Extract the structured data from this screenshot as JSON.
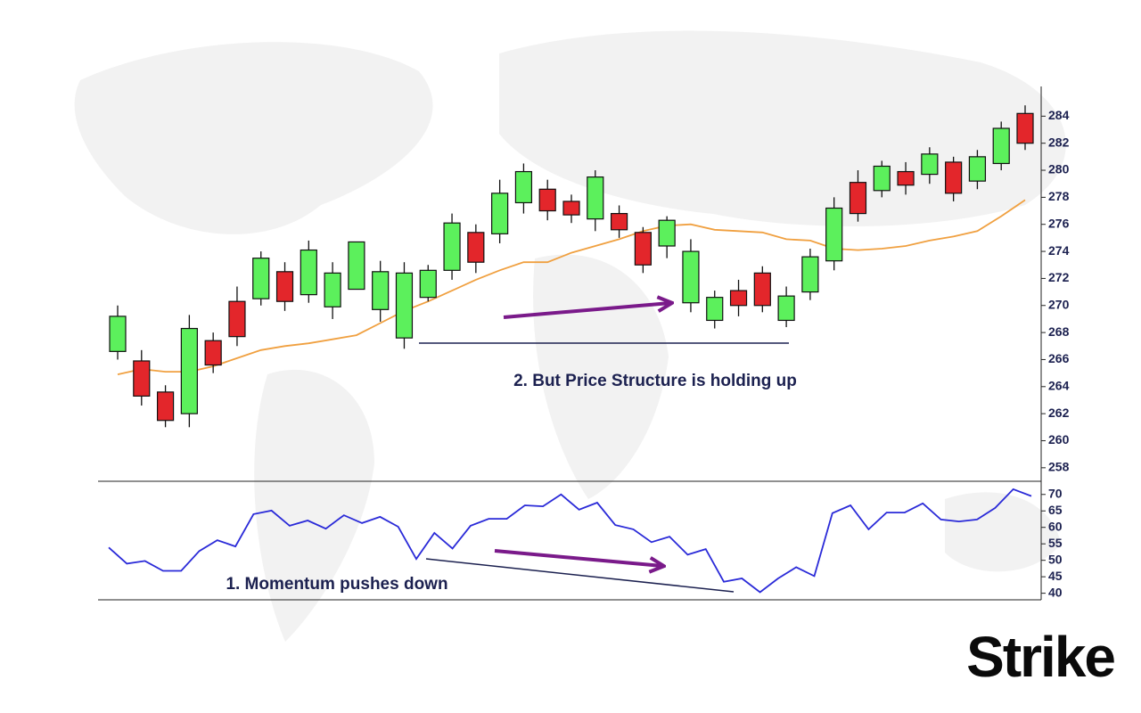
{
  "chart_data": [
    {
      "type": "candlestick",
      "open": [
        266.6,
        265.9,
        263.6,
        262.0,
        267.4,
        270.3,
        270.5,
        272.5,
        270.8,
        269.9,
        271.2,
        269.7,
        267.6,
        270.6,
        272.6,
        275.4,
        275.3,
        277.6,
        278.6,
        277.7,
        276.4,
        276.8,
        275.4,
        274.4,
        270.2,
        268.9,
        271.1,
        272.4,
        268.9,
        271.0,
        273.3,
        279.1,
        278.5,
        279.9,
        279.7,
        280.6,
        279.2,
        280.5,
        284.2
      ],
      "high": [
        270.0,
        266.7,
        264.1,
        269.3,
        268.0,
        271.4,
        274.0,
        273.2,
        274.8,
        273.2,
        274.7,
        273.3,
        273.2,
        273.0,
        276.8,
        276.0,
        279.3,
        280.5,
        279.3,
        278.2,
        280.0,
        277.4,
        275.8,
        276.6,
        274.9,
        271.1,
        271.9,
        272.9,
        271.4,
        274.2,
        278.0,
        280.0,
        280.7,
        280.6,
        281.7,
        281.0,
        281.5,
        283.6,
        284.8
      ],
      "low": [
        266.0,
        262.6,
        261.0,
        261.0,
        265.0,
        267.0,
        270.0,
        269.6,
        270.2,
        269.0,
        271.2,
        268.8,
        266.8,
        270.3,
        271.9,
        272.4,
        274.6,
        276.8,
        276.3,
        276.1,
        275.5,
        275.0,
        272.4,
        273.5,
        269.5,
        268.3,
        269.2,
        269.5,
        268.4,
        270.4,
        272.6,
        276.2,
        278.0,
        278.2,
        279.0,
        277.7,
        278.6,
        280.0,
        281.5
      ],
      "close": [
        269.2,
        263.3,
        261.5,
        268.3,
        265.6,
        267.7,
        273.5,
        270.3,
        274.1,
        272.4,
        274.7,
        272.5,
        272.4,
        272.6,
        276.1,
        273.2,
        278.3,
        279.9,
        277.0,
        276.7,
        279.5,
        275.6,
        273.0,
        276.3,
        274.0,
        270.6,
        270.0,
        270.0,
        270.7,
        273.6,
        277.2,
        276.8,
        280.3,
        278.9,
        281.2,
        278.3,
        281.0,
        283.1,
        282.0
      ],
      "up_color": "#5cf05c",
      "down_color": "#e3262b",
      "moving_average": {
        "color": "#f0a040",
        "values": [
          264.9,
          265.3,
          265.1,
          265.1,
          265.5,
          266.1,
          266.7,
          267.0,
          267.2,
          267.5,
          267.8,
          268.7,
          269.6,
          270.3,
          271.1,
          271.9,
          272.6,
          273.2,
          273.2,
          273.9,
          274.4,
          274.9,
          275.5,
          275.9,
          276.0,
          275.6,
          275.5,
          275.4,
          274.9,
          274.8,
          274.2,
          274.1,
          274.2,
          274.4,
          274.8,
          275.1,
          275.5,
          276.6,
          277.8
        ]
      },
      "ylim": [
        257,
        286
      ],
      "yticks": [
        258,
        260,
        262,
        264,
        266,
        268,
        270,
        272,
        274,
        276,
        278,
        280,
        282,
        284
      ],
      "annotation": "2. But Price Structure is holding up"
    },
    {
      "type": "line",
      "color": "#2a2ad8",
      "values": [
        53.9,
        49.0,
        49.8,
        46.8,
        46.8,
        52.8,
        56.1,
        54.2,
        64.0,
        65.1,
        60.5,
        62.1,
        59.6,
        63.7,
        61.3,
        63.2,
        60.2,
        50.4,
        58.3,
        53.6,
        60.5,
        62.6,
        62.6,
        66.7,
        66.4,
        70.0,
        65.4,
        67.5,
        60.7,
        59.4,
        55.5,
        57.2,
        51.7,
        53.4,
        43.5,
        44.5,
        40.3,
        44.5,
        47.9,
        45.2,
        64.3,
        66.7,
        59.4,
        64.5,
        64.5,
        67.3,
        62.4,
        61.8,
        62.4,
        65.9,
        71.6,
        69.5
      ],
      "ylim": [
        38,
        74
      ],
      "yticks": [
        40,
        45,
        50,
        55,
        60,
        65,
        70
      ],
      "annotation": "1. Momentum pushes down"
    }
  ],
  "brand": "Strike"
}
